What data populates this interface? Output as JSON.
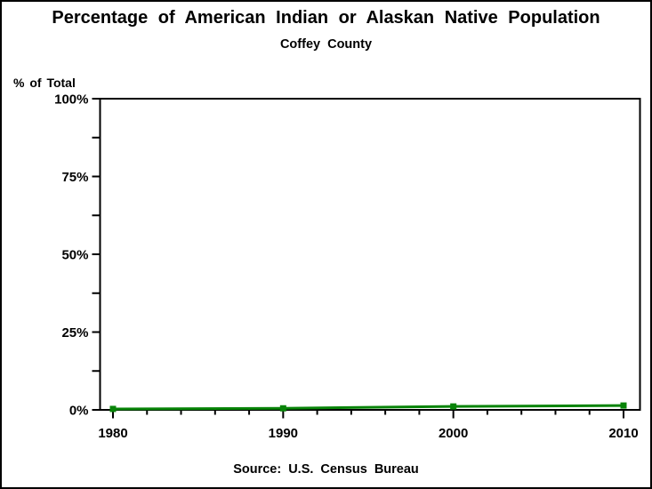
{
  "header": {
    "title": "Percentage of American Indian or Alaskan Native Population",
    "subtitle": "Coffey County"
  },
  "footer": {
    "source": "Source: U.S. Census Bureau"
  },
  "colors": {
    "line": "#088408",
    "marker": "#088408",
    "axis": "#000000",
    "text": "#000000",
    "background": "#ffffff"
  },
  "chart_data": {
    "type": "line",
    "title": "Percentage of American Indian or Alaskan Native Population",
    "subtitle": "Coffey County",
    "xlabel": "",
    "ylabel": "% of Total",
    "x": [
      1980,
      1990,
      2000,
      2010
    ],
    "series": [
      {
        "name": "% of Total",
        "values": [
          0.3,
          0.5,
          1.1,
          1.4
        ]
      }
    ],
    "xlim": [
      1979.2,
      2010.9
    ],
    "ylim": [
      0,
      100
    ],
    "x_ticks": [
      1980,
      1990,
      2000,
      2010
    ],
    "x_tick_labels": [
      "1980",
      "1990",
      "2000",
      "2010"
    ],
    "x_minor_tick_interval": 2,
    "y_ticks": [
      0,
      25,
      50,
      75,
      100
    ],
    "y_tick_labels": [
      "0%",
      "25%",
      "50%",
      "75%",
      "100%"
    ],
    "y_minor_ticks": [
      12.5,
      37.5,
      62.5,
      87.5
    ],
    "grid": false,
    "legend": "none",
    "marker": "square",
    "annotations": [
      "Source: U.S. Census Bureau"
    ]
  }
}
